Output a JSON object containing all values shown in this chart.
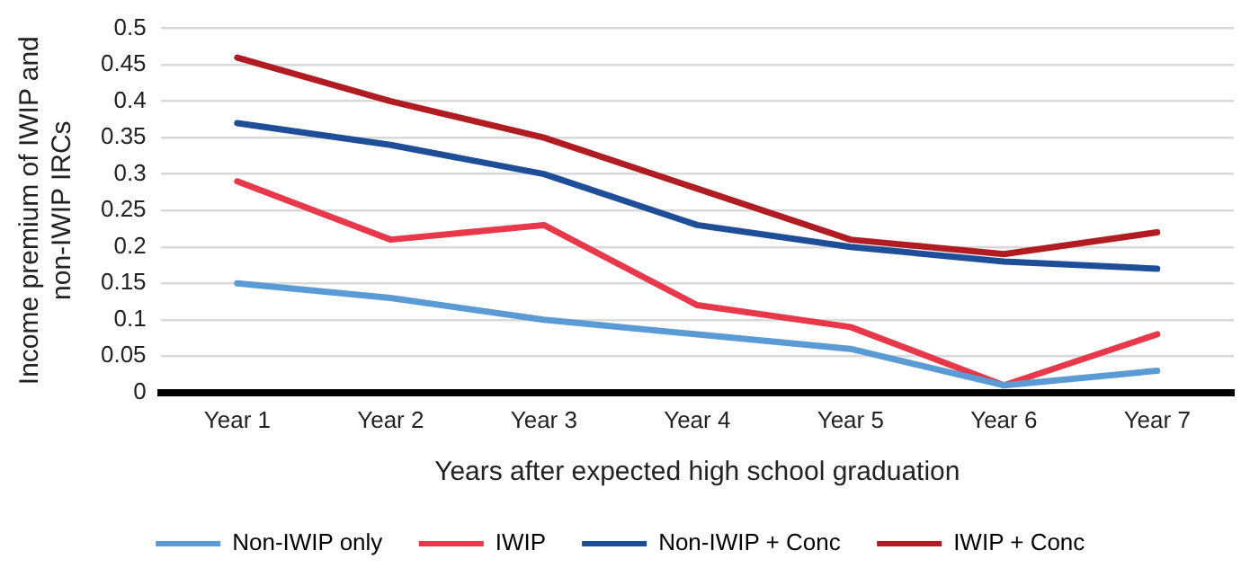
{
  "chart_data": {
    "type": "line",
    "xlabel": "Years after expected high school graduation",
    "ylabel": "Income premium of IWIP and non-IWIP IRCs",
    "categories": [
      "Year 1",
      "Year 2",
      "Year 3",
      "Year 4",
      "Year 5",
      "Year 6",
      "Year 7"
    ],
    "series": [
      {
        "name": "Non-IWIP only",
        "color": "#5b9bd5",
        "values": [
          0.15,
          0.13,
          0.1,
          0.08,
          0.06,
          0.01,
          0.03
        ]
      },
      {
        "name": "IWIP",
        "color": "#e8394a",
        "values": [
          0.29,
          0.21,
          0.23,
          0.12,
          0.09,
          0.01,
          0.08
        ]
      },
      {
        "name": "Non-IWIP + Conc",
        "color": "#1f4e99",
        "values": [
          0.37,
          0.34,
          0.3,
          0.23,
          0.2,
          0.18,
          0.17
        ]
      },
      {
        "name": "IWIP + Conc",
        "color": "#b01c22",
        "values": [
          0.46,
          0.4,
          0.35,
          0.28,
          0.21,
          0.19,
          0.22
        ]
      }
    ],
    "ylim": [
      0,
      0.5
    ],
    "yticks": [
      0,
      0.05,
      0.1,
      0.15,
      0.2,
      0.25,
      0.3,
      0.35,
      0.4,
      0.45,
      0.5
    ],
    "grid": "y",
    "legend": "bottom",
    "marker": "none",
    "line_style": "solid"
  }
}
